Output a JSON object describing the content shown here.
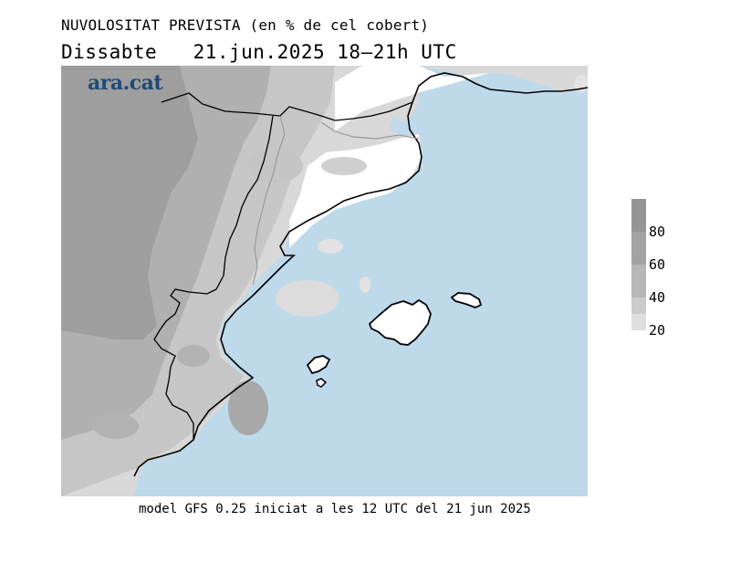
{
  "title": "NUVOLOSITAT PREVISTA (en % de cel cobert)",
  "subtitle": "Dissabte   21.jun.2025 18–21h UTC",
  "brand": "ara.cat",
  "footer": "model GFS 0.25 iniciat a les 12 UTC del 21 jun 2025",
  "legend": {
    "levels": [
      {
        "label": "80",
        "color": "#a3a3a3"
      },
      {
        "label": "60",
        "color": "#b7b7b7"
      },
      {
        "label": "40",
        "color": "#cbcbcb"
      },
      {
        "label": "20",
        "color": "#dedede"
      }
    ],
    "top_color": "#949494"
  },
  "colors": {
    "sea": "#bdd9ea",
    "clear_sky": "#ffffff",
    "coast": "#000000",
    "borders": "#9a9a9a"
  }
}
